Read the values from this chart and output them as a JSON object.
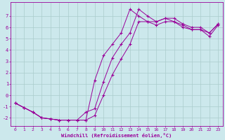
{
  "xlabel": "Windchill (Refroidissement éolien,°C)",
  "bg_color": "#cce8ec",
  "grid_color": "#aacccc",
  "line_color": "#990099",
  "xlim": [
    -0.5,
    23.5
  ],
  "ylim": [
    -2.7,
    8.2
  ],
  "xticks": [
    0,
    1,
    2,
    3,
    4,
    5,
    6,
    7,
    8,
    9,
    10,
    11,
    12,
    13,
    14,
    15,
    16,
    17,
    18,
    19,
    20,
    21,
    22,
    23
  ],
  "yticks": [
    -2,
    -1,
    0,
    1,
    2,
    3,
    4,
    5,
    6,
    7
  ],
  "line1_x": [
    0,
    1,
    2,
    3,
    4,
    5,
    6,
    7,
    8,
    9,
    10,
    11,
    12,
    13,
    14,
    15,
    16,
    17,
    18,
    19,
    20,
    21,
    22,
    23
  ],
  "line1_y": [
    -0.7,
    -1.1,
    -1.5,
    -2.0,
    -2.1,
    -2.2,
    -2.2,
    -2.2,
    -1.5,
    -1.2,
    1.2,
    3.3,
    4.5,
    5.5,
    7.6,
    7.0,
    6.5,
    6.8,
    6.8,
    6.3,
    6.0,
    6.0,
    5.5,
    6.3
  ],
  "line2_x": [
    0,
    1,
    2,
    3,
    4,
    5,
    6,
    8,
    9,
    10,
    11,
    12,
    13,
    14,
    15,
    16,
    17,
    18,
    19,
    20,
    21,
    22,
    23
  ],
  "line2_y": [
    -0.7,
    -1.1,
    -1.5,
    -2.0,
    -2.1,
    -2.2,
    -2.2,
    -2.2,
    -1.8,
    0.0,
    1.8,
    3.2,
    4.5,
    6.5,
    6.5,
    6.2,
    6.5,
    6.5,
    6.2,
    5.8,
    5.8,
    5.5,
    6.3
  ],
  "line3_x": [
    0,
    1,
    2,
    3,
    4,
    5,
    6,
    7,
    8,
    9,
    10,
    11,
    12,
    13,
    14,
    15,
    16,
    17,
    18,
    19,
    20,
    21,
    22,
    23
  ],
  "line3_y": [
    -0.7,
    -1.1,
    -1.5,
    -2.0,
    -2.1,
    -2.2,
    -2.2,
    -2.2,
    -2.2,
    1.3,
    3.5,
    4.5,
    5.5,
    7.6,
    7.0,
    6.5,
    6.5,
    6.8,
    6.5,
    6.0,
    5.8,
    5.8,
    5.2,
    6.2
  ]
}
